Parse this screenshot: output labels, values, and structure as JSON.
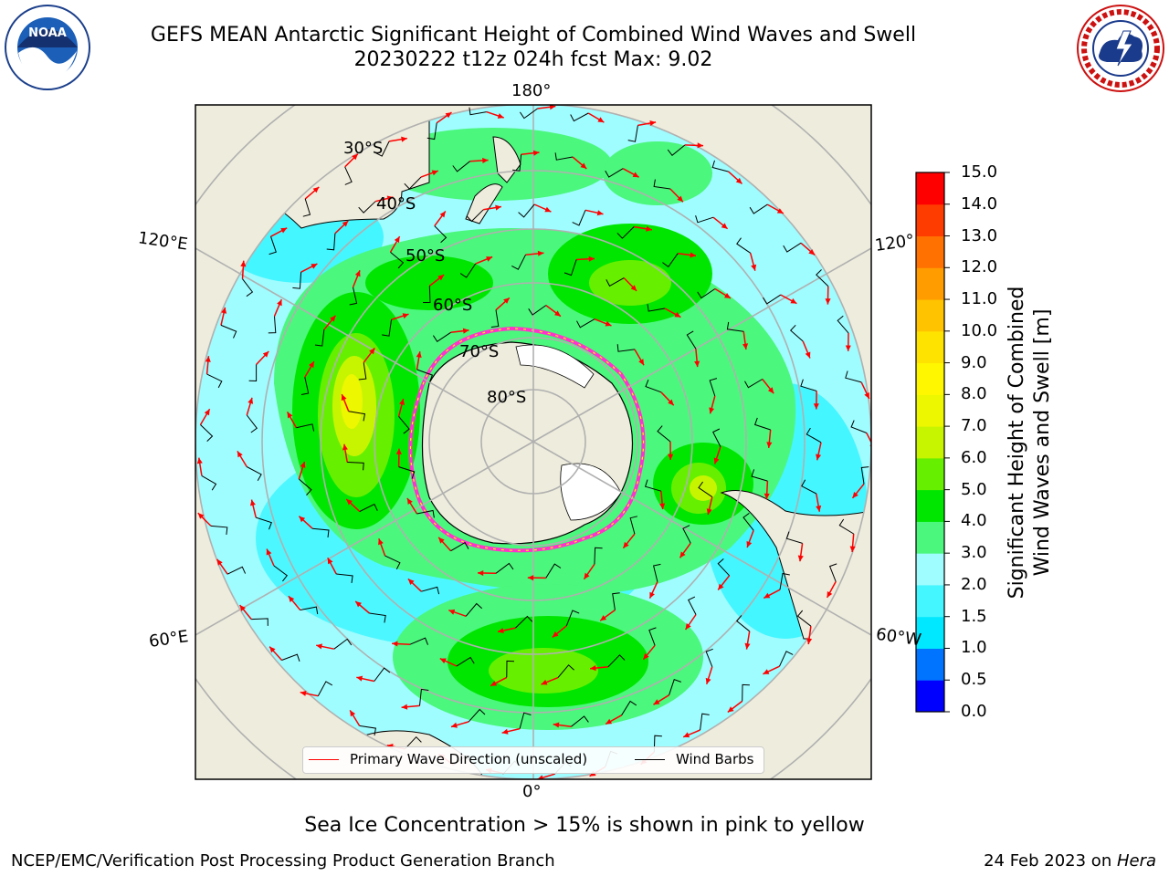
{
  "title": {
    "line1": "GEFS MEAN Antarctic Significant Height of Combined Wind Waves and Swell",
    "line2": "20230222 t12z 024h fcst   Max: 9.02"
  },
  "logos": {
    "left": "noara-logo",
    "right": "nws-logo",
    "left_icon": "noaa-logo-icon",
    "right_icon": "nws-logo-icon"
  },
  "map": {
    "projection": "south-polar-stereographic",
    "meridian_labels": {
      "top": "180°",
      "bottom": "0°",
      "left_upper": "120°E",
      "left_lower": "60°E",
      "right_upper": "120°",
      "right_lower": "60°W"
    },
    "latitude_labels": [
      "30°S",
      "40°S",
      "50°S",
      "60°S",
      "70°S",
      "80°S"
    ],
    "land_color": "#eeecdc",
    "ocean_fill_base": "#9ffcff"
  },
  "colorbar": {
    "title_line1": "Significant Height of Combined",
    "title_line2": "Wind Waves and Swell [m]",
    "ticks": [
      "0.0",
      "0.5",
      "1.0",
      "1.5",
      "2.0",
      "3.0",
      "4.0",
      "5.0",
      "6.0",
      "7.0",
      "8.0",
      "9.0",
      "10.0",
      "11.0",
      "12.0",
      "13.0",
      "14.0",
      "15.0"
    ],
    "colors": [
      "#0000ff",
      "#0073ff",
      "#00e8ff",
      "#44f6ff",
      "#9ffcff",
      "#4bf77c",
      "#00e600",
      "#66f000",
      "#c7f500",
      "#ecf700",
      "#fff700",
      "#ffe300",
      "#ffc300",
      "#ff9c00",
      "#ff7100",
      "#ff3c00",
      "#ff0000"
    ]
  },
  "legend": {
    "primary_wave": "Primary Wave Direction (unscaled)",
    "wind_barbs": "Wind Barbs",
    "primary_color": "#ff0000",
    "barb_color": "#000000"
  },
  "note": "Sea Ice Concentration > 15% is shown in pink to yellow",
  "footer": {
    "left": "NCEP/EMC/Verification Post Processing Product Generation Branch",
    "right_prefix": "24 Feb 2023 on ",
    "right_host": "Hera"
  }
}
